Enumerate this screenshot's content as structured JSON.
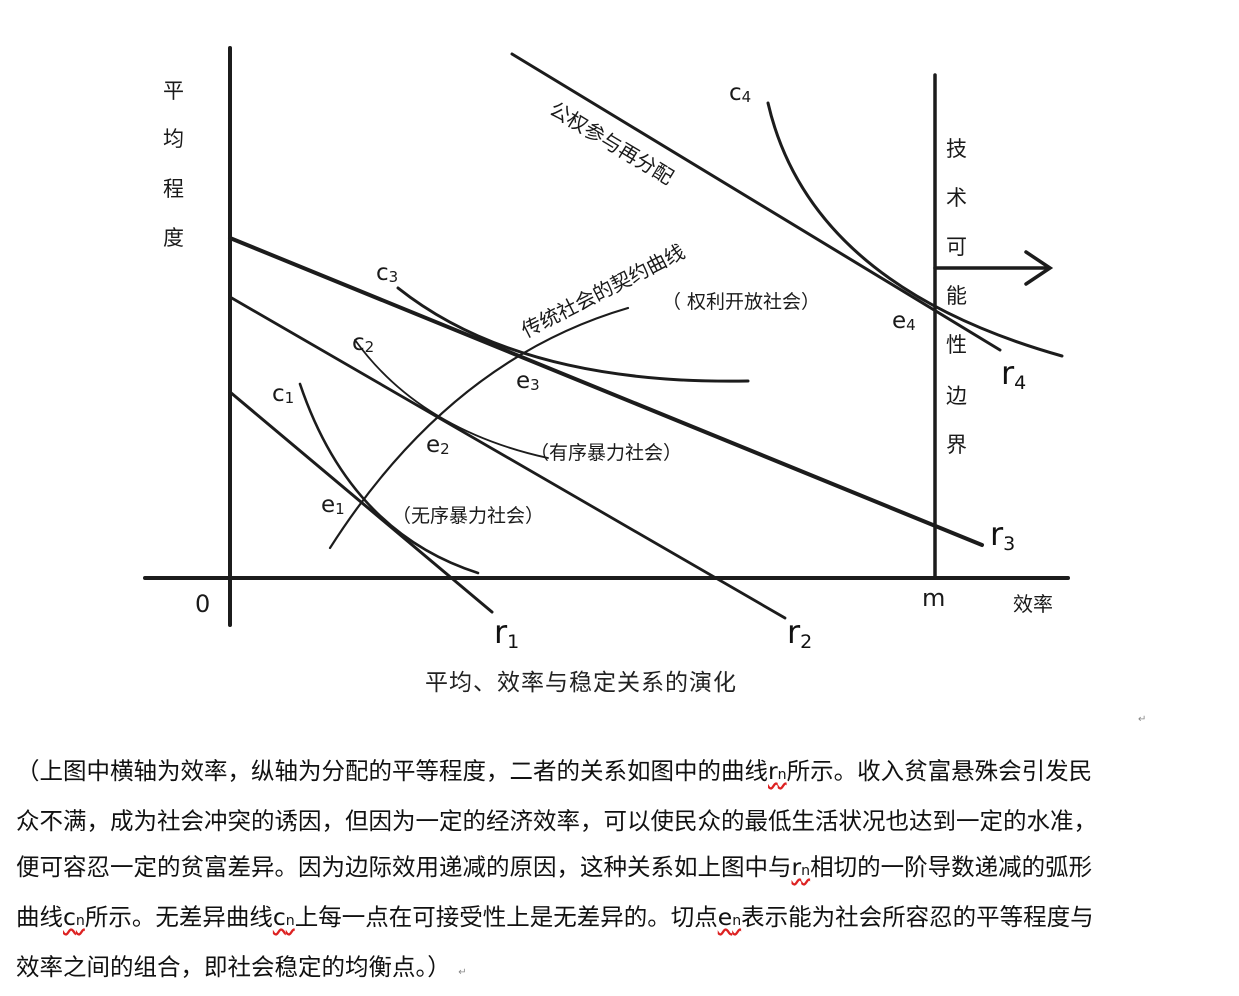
{
  "axes": {
    "y_label": [
      "平",
      "均",
      "程",
      "度"
    ],
    "x_label": "效率",
    "origin": "0",
    "m": "m",
    "frontier_label": [
      "技",
      "术",
      "可",
      "能",
      "性",
      "边",
      "界"
    ]
  },
  "lines": {
    "r1": {
      "main": "r",
      "sub": "1"
    },
    "r2": {
      "main": "r",
      "sub": "2"
    },
    "r3": {
      "main": "r",
      "sub": "3"
    },
    "r4": {
      "main": "r",
      "sub": "4"
    }
  },
  "curves": {
    "c1": {
      "main": "c",
      "sub": "1"
    },
    "c2": {
      "main": "c",
      "sub": "2"
    },
    "c3": {
      "main": "c",
      "sub": "3"
    },
    "c4": {
      "main": "c",
      "sub": "4"
    }
  },
  "points": {
    "e1": {
      "main": "e",
      "sub": "1"
    },
    "e2": {
      "main": "e",
      "sub": "2"
    },
    "e3": {
      "main": "e",
      "sub": "3"
    },
    "e4": {
      "main": "e",
      "sub": "4"
    }
  },
  "annotations": {
    "disordered": "（无序暴力社会）",
    "ordered": "（有序暴力社会）",
    "open": "（ 权利开放社会）",
    "contract_curve": "传统社会的契约曲线",
    "public_power": "公权参与再分配"
  },
  "caption": "平均、效率与稳定关系的演化",
  "paragraph": {
    "l1_a": "（上图中横轴为效率，纵轴为分配的平等程度，二者的关系如图中的曲线",
    "l1_r": "r",
    "l1_n": "n",
    "l1_b": "所示。收入贫富悬殊会引发民",
    "l2": "众不满，成为社会冲突的诱因，但因为一定的经济效率，可以使民众的最低生活状况也达到一定的水准，",
    "l3_a": "便可容忍一定的贫富差异。因为边际效用递减的原因，这种关系如上图中与",
    "l3_r": "r",
    "l3_n": "n",
    "l3_b": "相切的一阶导数递减的弧形",
    "l4_a": "曲线",
    "l4_c1": "c",
    "l4_n1": "n",
    "l4_b": "所示。无差异曲线",
    "l4_c2": "c",
    "l4_n2": "n",
    "l4_c": "上每一点在可接受性上是无差异的。切点",
    "l4_e": "e",
    "l4_n3": "n",
    "l4_d": "表示能为社会所容忍的平等程度与",
    "l5": "效率之间的组合，即社会稳定的均衡点。）"
  },
  "marks": {
    "return_1": "↵",
    "return_2": "↵"
  }
}
